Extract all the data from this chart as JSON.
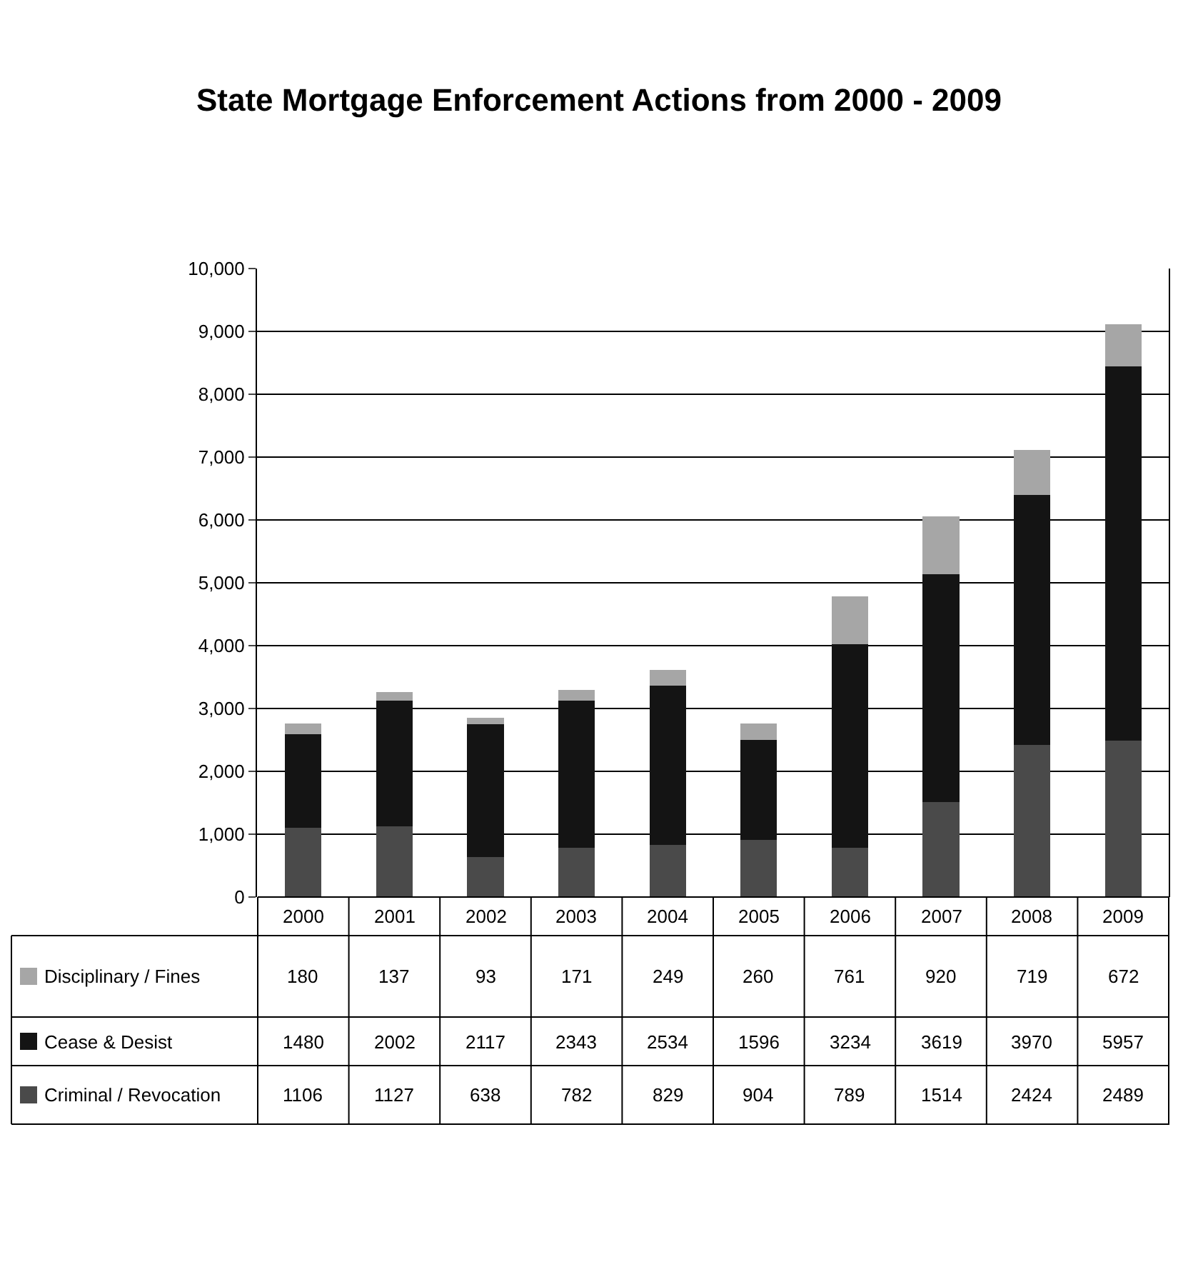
{
  "chart_data": {
    "type": "bar",
    "title": "State Mortgage Enforcement Actions from 2000 - 2009",
    "categories": [
      "2000",
      "2001",
      "2002",
      "2003",
      "2004",
      "2005",
      "2006",
      "2007",
      "2008",
      "2009"
    ],
    "stacked": true,
    "data_labels": true,
    "grid": "y",
    "legend": "bottom left",
    "ylim": [
      0,
      10000
    ],
    "yticks": [
      {
        "value": 0,
        "label": "0"
      },
      {
        "value": 1000,
        "label": "1,000"
      },
      {
        "value": 2000,
        "label": "2,000"
      },
      {
        "value": 3000,
        "label": "3,000"
      },
      {
        "value": 4000,
        "label": "4,000"
      },
      {
        "value": 5000,
        "label": "5,000"
      },
      {
        "value": 6000,
        "label": "6,000"
      },
      {
        "value": 7000,
        "label": "7,000"
      },
      {
        "value": 8000,
        "label": "8,000"
      },
      {
        "value": 9000,
        "label": "9,000"
      },
      {
        "value": 10000,
        "label": "10,000"
      }
    ],
    "series": [
      {
        "name": "Criminal / Revocation",
        "color": "#4a4a4a",
        "values": [
          1106,
          1127,
          638,
          782,
          829,
          904,
          789,
          1514,
          2424,
          2489
        ]
      },
      {
        "name": "Cease & Desist",
        "color": "#141414",
        "values": [
          1480,
          2002,
          2117,
          2343,
          2534,
          1596,
          3234,
          3619,
          3970,
          5957
        ]
      },
      {
        "name": "Disciplinary / Fines",
        "color": "#a6a6a6",
        "values": [
          180,
          137,
          93,
          171,
          249,
          260,
          761,
          920,
          719,
          672
        ]
      }
    ]
  }
}
